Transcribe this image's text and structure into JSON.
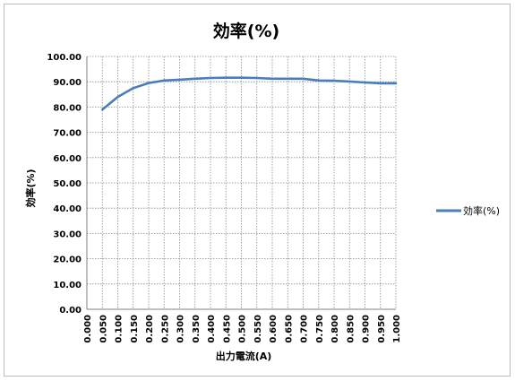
{
  "chart_data": {
    "type": "line",
    "title": "効率(%)",
    "xlabel": "出力電流(A)",
    "ylabel": "効率(%)",
    "ylim": [
      0,
      100
    ],
    "y_ticks": [
      "0.00",
      "10.00",
      "20.00",
      "30.00",
      "40.00",
      "50.00",
      "60.00",
      "70.00",
      "80.00",
      "90.00",
      "100.00"
    ],
    "x_ticks": [
      "0.000",
      "0.050",
      "0.100",
      "0.150",
      "0.200",
      "0.250",
      "0.300",
      "0.350",
      "0.400",
      "0.450",
      "0.500",
      "0.550",
      "0.600",
      "0.650",
      "0.700",
      "0.750",
      "0.800",
      "0.850",
      "0.900",
      "0.950",
      "1.000"
    ],
    "grid": true,
    "legend_position": "right",
    "series": [
      {
        "name": "効率(%)",
        "color": "#4a7ebb",
        "x": [
          0.05,
          0.1,
          0.15,
          0.2,
          0.25,
          0.3,
          0.35,
          0.4,
          0.45,
          0.5,
          0.55,
          0.6,
          0.65,
          0.7,
          0.75,
          0.8,
          0.85,
          0.9,
          0.95,
          1.0
        ],
        "y": [
          79.0,
          84.0,
          87.5,
          89.5,
          90.5,
          90.8,
          91.2,
          91.5,
          91.6,
          91.6,
          91.5,
          91.2,
          91.2,
          91.2,
          90.5,
          90.4,
          90.1,
          89.7,
          89.4,
          89.4
        ]
      }
    ]
  }
}
